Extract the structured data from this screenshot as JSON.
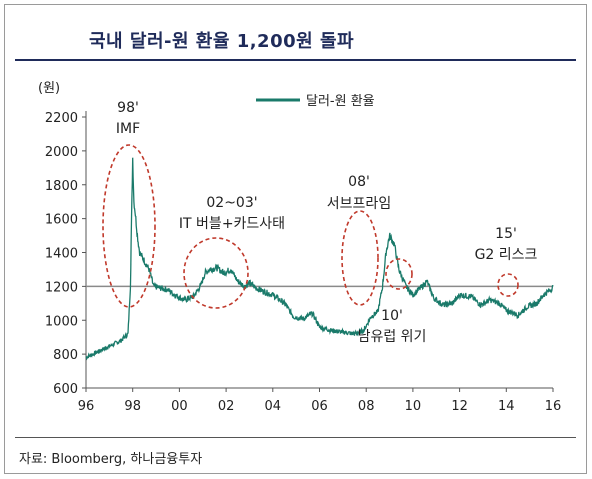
{
  "title": "국내 달러-원 환율 1,200원 돌파",
  "source": "자료: Bloomberg, 하나금융투자",
  "chart_data": {
    "type": "line",
    "unit_label": "(원)",
    "y_ticks": [
      "2200",
      "2000",
      "1800",
      "1600",
      "1400",
      "1200",
      "1000",
      "800",
      "600"
    ],
    "x_ticks": [
      "96",
      "98",
      "00",
      "02",
      "04",
      "06",
      "08",
      "10",
      "12",
      "14",
      "16"
    ],
    "ylim": [
      600,
      2200
    ],
    "xlim": [
      1996,
      2016
    ],
    "reference_line": 1200,
    "grid": false,
    "legend": "top-right",
    "color": "#1a7a6a",
    "series": [
      {
        "name": "달러-원 환율",
        "x": [
          1996.0,
          1996.3,
          1996.6,
          1996.9,
          1997.2,
          1997.5,
          1997.8,
          1997.9,
          1998.0,
          1998.05,
          1998.1,
          1998.2,
          1998.3,
          1998.5,
          1998.7,
          1998.9,
          1999.2,
          1999.5,
          1999.8,
          2000.2,
          2000.6,
          2000.9,
          2001.1,
          2001.3,
          2001.6,
          2001.9,
          2002.2,
          2002.5,
          2002.8,
          2003.0,
          2003.3,
          2003.6,
          2004.0,
          2004.5,
          2004.9,
          2005.3,
          2005.7,
          2006.0,
          2006.5,
          2007.0,
          2007.5,
          2007.9,
          2008.2,
          2008.5,
          2008.7,
          2008.85,
          2009.0,
          2009.2,
          2009.4,
          2009.7,
          2010.0,
          2010.4,
          2010.6,
          2010.9,
          2011.3,
          2011.7,
          2012.0,
          2012.5,
          2012.9,
          2013.3,
          2013.7,
          2014.0,
          2014.5,
          2014.9,
          2015.3,
          2015.6,
          2015.9,
          2016.0
        ],
        "values": [
          780,
          800,
          820,
          840,
          860,
          880,
          920,
          1200,
          1960,
          1700,
          1650,
          1500,
          1400,
          1350,
          1300,
          1200,
          1190,
          1180,
          1150,
          1120,
          1140,
          1200,
          1280,
          1300,
          1310,
          1280,
          1300,
          1230,
          1200,
          1220,
          1190,
          1170,
          1150,
          1100,
          1020,
          1010,
          1040,
          960,
          940,
          930,
          920,
          940,
          1020,
          1050,
          1200,
          1400,
          1500,
          1450,
          1300,
          1200,
          1150,
          1200,
          1230,
          1130,
          1090,
          1100,
          1150,
          1140,
          1090,
          1120,
          1100,
          1060,
          1030,
          1080,
          1100,
          1150,
          1180,
          1200
        ]
      }
    ],
    "annotations": [
      {
        "id": "imf",
        "line1": "98'",
        "line2": "IMF"
      },
      {
        "id": "bubble",
        "line1": "02~03'",
        "line2": "IT 버블+카드사태"
      },
      {
        "id": "subprime",
        "line1": "08'",
        "line2": "서브프라임"
      },
      {
        "id": "eurozone",
        "line1": "10'",
        "line2": "남유럽 위기"
      },
      {
        "id": "g2",
        "line1": "15'",
        "line2": "G2 리스크"
      }
    ]
  }
}
